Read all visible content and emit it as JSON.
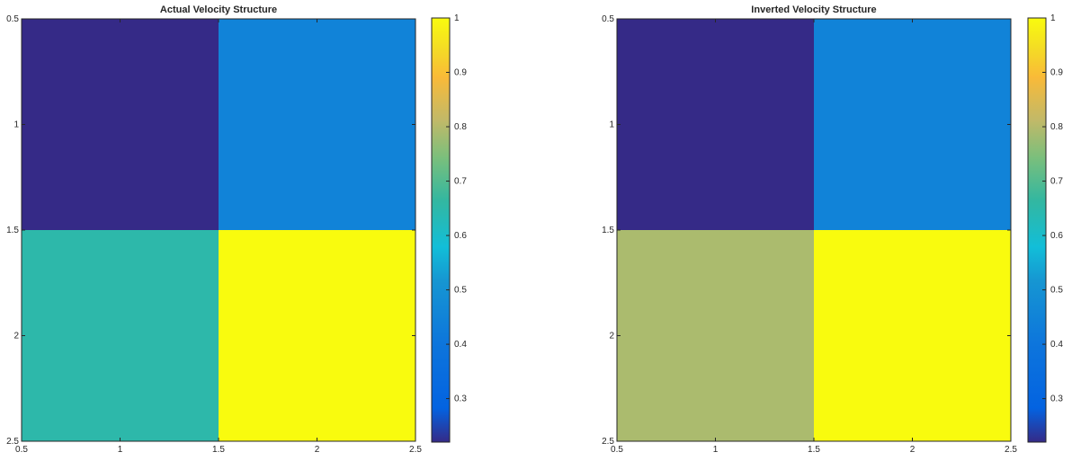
{
  "chart_data": [
    {
      "type": "heatmap",
      "title": "Actual Velocity Structure",
      "xlabel": "",
      "ylabel": "",
      "xlim": [
        0.5,
        2.5
      ],
      "ylim": [
        0.5,
        2.5
      ],
      "y_reversed": true,
      "x_ticks": [
        "0.5",
        "1",
        "1.5",
        "2",
        "2.5"
      ],
      "y_ticks": [
        "0.5",
        "1",
        "1.5",
        "2",
        "2.5"
      ],
      "x": [
        1,
        2
      ],
      "y": [
        1,
        2
      ],
      "values": [
        [
          0.22,
          0.45
        ],
        [
          0.65,
          1.0
        ]
      ],
      "colorbar": {
        "range": [
          0.22,
          1.0
        ],
        "ticks": [
          "0.3",
          "0.4",
          "0.5",
          "0.6",
          "0.7",
          "0.8",
          "0.9",
          "1"
        ],
        "colormap": "parula"
      },
      "grid": false
    },
    {
      "type": "heatmap",
      "title": "Inverted Velocity Structure",
      "xlabel": "",
      "ylabel": "",
      "xlim": [
        0.5,
        2.5
      ],
      "ylim": [
        0.5,
        2.5
      ],
      "y_reversed": true,
      "x_ticks": [
        "0.5",
        "1",
        "1.5",
        "2",
        "2.5"
      ],
      "y_ticks": [
        "0.5",
        "1",
        "1.5",
        "2",
        "2.5"
      ],
      "x": [
        1,
        2
      ],
      "y": [
        1,
        2
      ],
      "values": [
        [
          0.22,
          0.45
        ],
        [
          0.79,
          1.0
        ]
      ],
      "colorbar": {
        "range": [
          0.22,
          1.0
        ],
        "ticks": [
          "0.3",
          "0.4",
          "0.5",
          "0.6",
          "0.7",
          "0.8",
          "0.9",
          "1"
        ],
        "colormap": "parula"
      },
      "grid": false
    }
  ]
}
